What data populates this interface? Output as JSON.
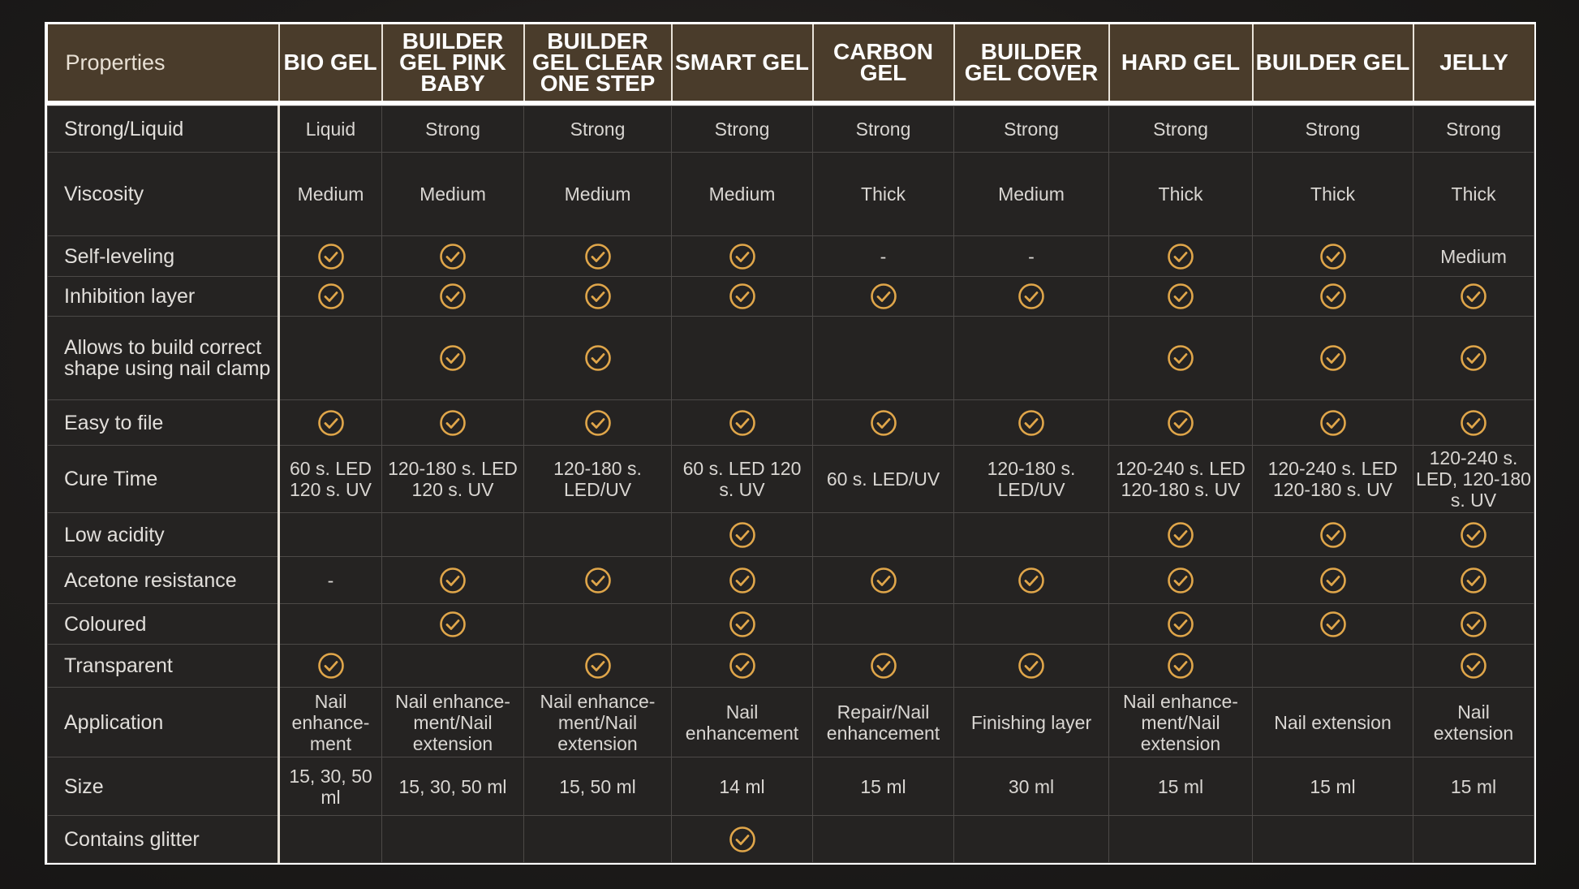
{
  "colors": {
    "header_bg": "#4a3c2b",
    "check": "#e0a64a",
    "cell_bg": "#252322",
    "border": "#ffffff"
  },
  "header": {
    "properties_label": "Properties",
    "products": [
      "BIO GEL",
      "BUILDER GEL PINK BABY",
      "BUILDER GEL CLEAR ONE STEP",
      "SMART GEL",
      "CARBON GEL",
      "BUILDER GEL COVER",
      "HARD GEL",
      "BUILDER GEL",
      "JELLY"
    ]
  },
  "rows": [
    {
      "label": "Strong/Liquid",
      "cells": [
        "Liquid",
        "Strong",
        "Strong",
        "Strong",
        "Strong",
        "Strong",
        "Strong",
        "Strong",
        "Strong"
      ]
    },
    {
      "label": "Viscosity",
      "cells": [
        "Medium",
        "Medium",
        "Medium",
        "Medium",
        "Thick",
        "Medium",
        "Thick",
        "Thick",
        "Thick"
      ]
    },
    {
      "label": "Self-leveling",
      "cells": [
        "check",
        "check",
        "check",
        "check",
        "-",
        "-",
        "check",
        "check",
        "Medium"
      ]
    },
    {
      "label": "Inhibition layer",
      "cells": [
        "check",
        "check",
        "check",
        "check",
        "check",
        "check",
        "check",
        "check",
        "check"
      ]
    },
    {
      "label": "Allows to build correct shape using nail clamp",
      "cells": [
        "",
        "check",
        "check",
        "",
        "",
        "",
        "check",
        "check",
        "check"
      ]
    },
    {
      "label": "Easy to file",
      "cells": [
        "check",
        "check",
        "check",
        "check",
        "check",
        "check",
        "check",
        "check",
        "check"
      ]
    },
    {
      "label": "Cure Time",
      "cells": [
        "60 s. LED 120 s. UV",
        "120-180 s. LED 120 s. UV",
        "120-180 s. LED/UV",
        "60 s. LED 120 s. UV",
        "60 s. LED/UV",
        "120-180 s. LED/UV",
        "120-240 s. LED 120-180 s. UV",
        "120-240 s. LED 120-180 s. UV",
        "120-240 s. LED, 120-180 s. UV"
      ]
    },
    {
      "label": "Low acidity",
      "cells": [
        "",
        "",
        "",
        "check",
        "",
        "",
        "check",
        "check",
        "check"
      ]
    },
    {
      "label": "Acetone resistance",
      "cells": [
        "-",
        "check",
        "check",
        "check",
        "check",
        "check",
        "check",
        "check",
        "check"
      ]
    },
    {
      "label": "Coloured",
      "cells": [
        "",
        "check",
        "",
        "check",
        "",
        "",
        "check",
        "check",
        "check"
      ]
    },
    {
      "label": "Transparent",
      "cells": [
        "check",
        "",
        "check",
        "check",
        "check",
        "check",
        "check",
        "",
        "check"
      ]
    },
    {
      "label": "Application",
      "cells": [
        "Nail enhance-ment",
        "Nail enhance-ment/Nail extension",
        "Nail enhance-ment/Nail extension",
        "Nail enhancement",
        "Repair/Nail enhancement",
        "Finishing layer",
        "Nail enhance-ment/Nail extension",
        "Nail extension",
        "Nail extension"
      ]
    },
    {
      "label": "Size",
      "cells": [
        "15, 30, 50 ml",
        "15, 30, 50 ml",
        "15, 50 ml",
        "14 ml",
        "15 ml",
        "30 ml",
        "15 ml",
        "15 ml",
        "15 ml"
      ]
    },
    {
      "label": "Contains glitter",
      "cells": [
        "",
        "",
        "",
        "check",
        "",
        "",
        "",
        "",
        ""
      ]
    }
  ]
}
